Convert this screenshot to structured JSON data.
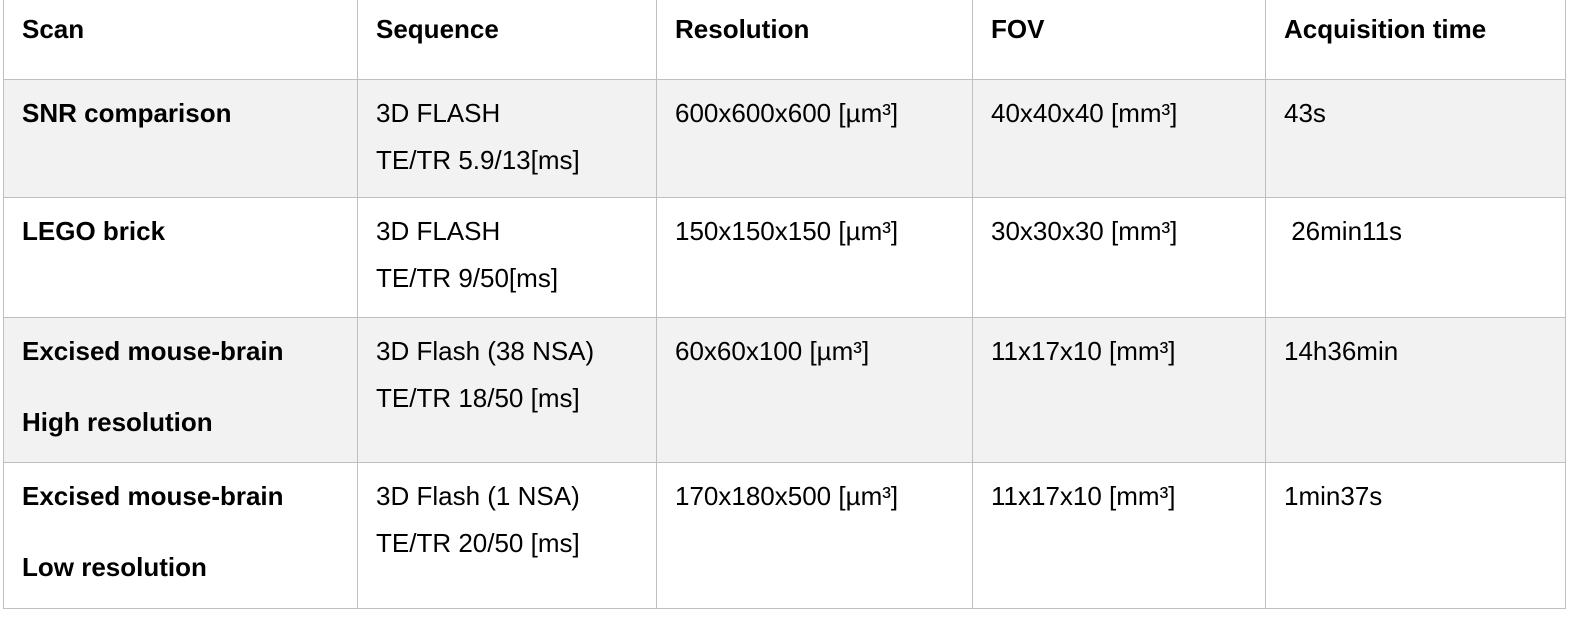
{
  "table": {
    "headers": [
      "Scan",
      "Sequence",
      "Resolution",
      "FOV",
      "Acquisition time"
    ],
    "rows": [
      {
        "scan": [
          "SNR comparison"
        ],
        "sequence": [
          "3D FLASH",
          "TE/TR 5.9/13[ms]"
        ],
        "resolution": "600x600x600 [µm³]",
        "fov": "40x40x40 [mm³]",
        "time": "43s",
        "shaded": true
      },
      {
        "scan": [
          "LEGO brick"
        ],
        "sequence": [
          "3D FLASH",
          "TE/TR 9/50[ms]"
        ],
        "resolution": "150x150x150 [µm³]",
        "fov": "30x30x30 [mm³]",
        "time": " 26min11s",
        "shaded": false
      },
      {
        "scan": [
          "Excised mouse-brain",
          "High resolution"
        ],
        "sequence": [
          "3D Flash (38 NSA)",
          "TE/TR 18/50 [ms]"
        ],
        "resolution": "60x60x100 [µm³]",
        "fov": "11x17x10 [mm³]",
        "time": "14h36min",
        "shaded": true
      },
      {
        "scan": [
          "Excised mouse-brain",
          "Low resolution"
        ],
        "sequence": [
          "3D Flash (1 NSA)",
          "TE/TR 20/50 [ms]"
        ],
        "resolution": "170x180x500 [µm³]",
        "fov": "11x17x10 [mm³]",
        "time": "1min37s",
        "shaded": false
      }
    ],
    "colors": {
      "border": "#bfbfbf",
      "shade": "#f2f2f2"
    }
  }
}
